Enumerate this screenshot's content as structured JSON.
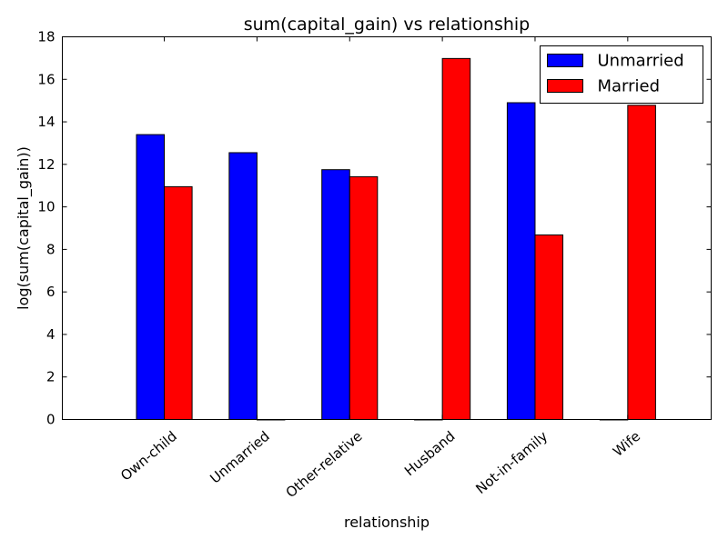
{
  "chart_data": {
    "type": "bar",
    "title": "sum(capital_gain) vs relationship",
    "xlabel": "relationship",
    "ylabel": "log(sum(capital_gain))",
    "categories": [
      "Own-child",
      "Unmarried",
      "Other-relative",
      "Husband",
      "Not-in-family",
      "Wife"
    ],
    "series": [
      {
        "name": "Unmarried",
        "color": "#0000ff",
        "values": [
          13.4,
          12.55,
          11.75,
          0,
          14.9,
          0
        ]
      },
      {
        "name": "Married",
        "color": "#ff0000",
        "values": [
          10.95,
          0,
          11.42,
          16.98,
          8.68,
          14.78
        ]
      }
    ],
    "ylim": [
      0,
      18
    ],
    "yticks": [
      0,
      2,
      4,
      6,
      8,
      10,
      12,
      14,
      16,
      18
    ],
    "legend_position": "top-right",
    "grid": false
  }
}
